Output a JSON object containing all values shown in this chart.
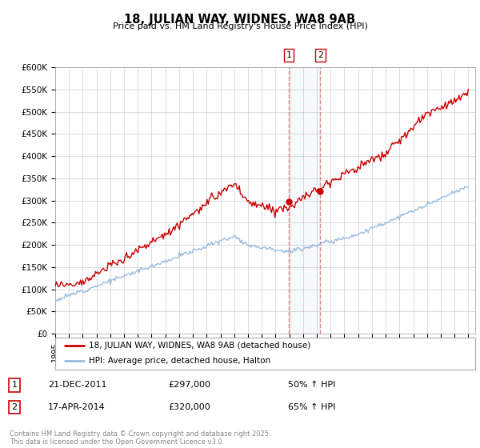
{
  "title": "18, JULIAN WAY, WIDNES, WA8 9AB",
  "subtitle": "Price paid vs. HM Land Registry's House Price Index (HPI)",
  "ylabel_ticks": [
    "£0",
    "£50K",
    "£100K",
    "£150K",
    "£200K",
    "£250K",
    "£300K",
    "£350K",
    "£400K",
    "£450K",
    "£500K",
    "£550K",
    "£600K"
  ],
  "ytick_values": [
    0,
    50000,
    100000,
    150000,
    200000,
    250000,
    300000,
    350000,
    400000,
    450000,
    500000,
    550000,
    600000
  ],
  "x_start_year": 1995,
  "x_end_year": 2025,
  "red_line_color": "#cc0000",
  "blue_line_color": "#99bbdd",
  "vline_color": "#dd8888",
  "sale1_year": 2011.95,
  "sale2_year": 2014.25,
  "sale1_val": 297000,
  "sale2_val": 320000,
  "sale1_date": "21-DEC-2011",
  "sale1_price": "£297,000",
  "sale1_hpi": "50% ↑ HPI",
  "sale2_date": "17-APR-2014",
  "sale2_price": "£320,000",
  "sale2_hpi": "65% ↑ HPI",
  "legend_label1": "18, JULIAN WAY, WIDNES, WA8 9AB (detached house)",
  "legend_label2": "HPI: Average price, detached house, Halton",
  "footer": "Contains HM Land Registry data © Crown copyright and database right 2025.\nThis data is licensed under the Open Government Licence v3.0.",
  "background_color": "#ffffff",
  "grid_color": "#cccccc"
}
